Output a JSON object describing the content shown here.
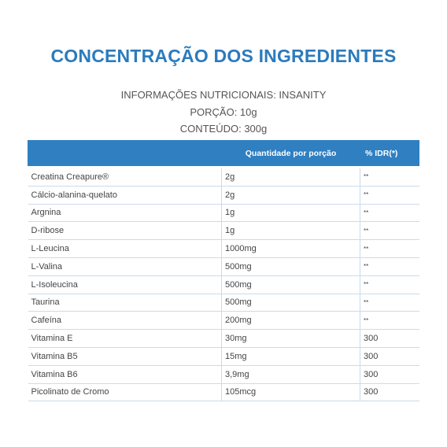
{
  "header": {
    "title": "CONCENTRAÇÃO DOS INGREDIENTES",
    "lines": [
      "INFORMAÇÕES NUTRICIONAIS: INSANITY",
      "PORÇÃO: 10g",
      "CONTEÚDO: 300g"
    ]
  },
  "table": {
    "columns": [
      "Quantidade por porção",
      "% IDR(*)"
    ],
    "rows": [
      [
        "Creatina Creapure®",
        "2g",
        "**"
      ],
      [
        "Cálcio-alanina-quelato",
        "2g",
        "**"
      ],
      [
        "Argnina",
        "1g",
        "**"
      ],
      [
        "D-ribose",
        "1g",
        "**"
      ],
      [
        "L-Leucina",
        "1000mg",
        "**"
      ],
      [
        "L-Valina",
        "500mg",
        "**"
      ],
      [
        "L-Isoleucina",
        "500mg",
        "**"
      ],
      [
        "Taurina",
        "500mg",
        "**"
      ],
      [
        "Cafeína",
        "200mg",
        "**"
      ],
      [
        "Vitamina E",
        "30mg",
        "300"
      ],
      [
        "Vitamina B5",
        "15mg",
        "300"
      ],
      [
        "Vitamina B6",
        "3,9mg",
        "300"
      ],
      [
        "Picolinato de Cromo",
        "105mcg",
        "300"
      ]
    ]
  }
}
